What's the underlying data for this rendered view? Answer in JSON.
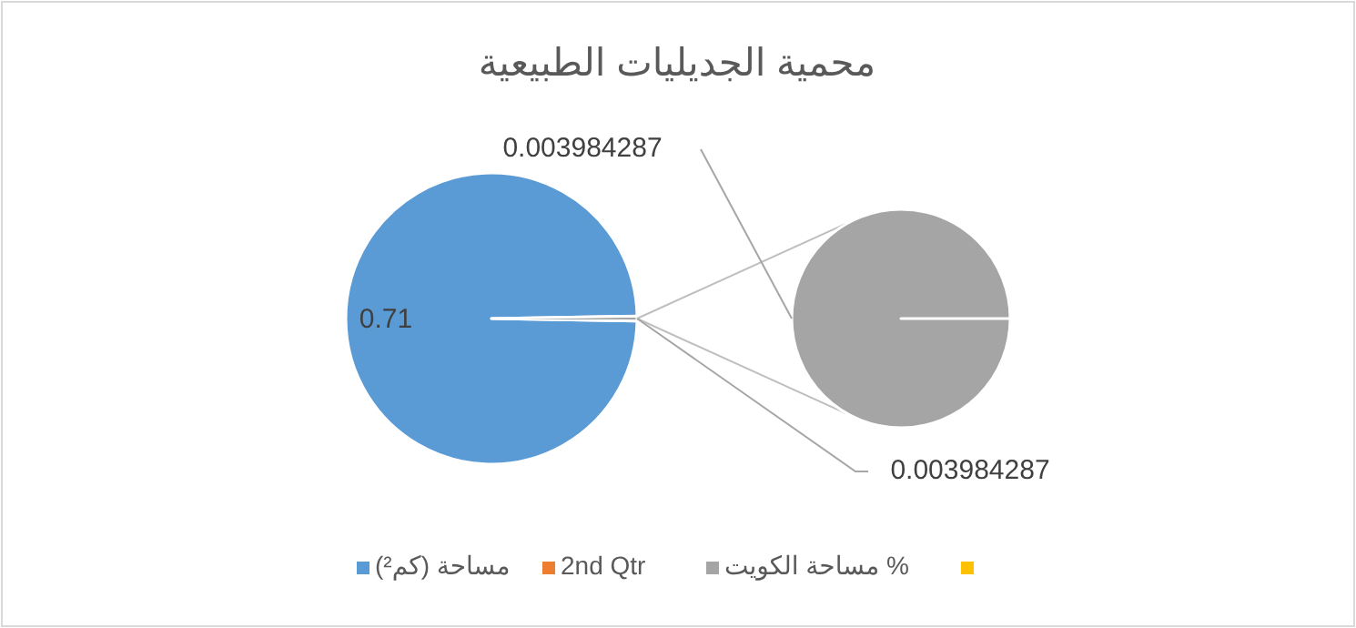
{
  "chart_data": {
    "type": "pie",
    "title": "محمية الجديليات الطبيعية",
    "categories": [
      "مساحة (كم²)",
      "2nd Qtr",
      "مساحة الكويت %",
      null
    ],
    "values": [
      0.71,
      0,
      0.003984287,
      0
    ],
    "colors": [
      "#5b9bd5",
      "#ed7d31",
      "#a5a5a5",
      "#ffc000"
    ],
    "value_labels": [
      "0.71",
      null,
      "0.003984287",
      null
    ],
    "annotations": [
      "0.003984287"
    ],
    "legend": "bottom"
  }
}
